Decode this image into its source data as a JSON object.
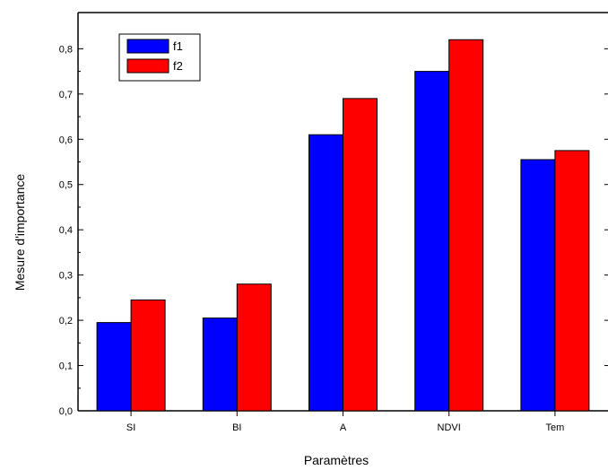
{
  "chart_data": {
    "type": "bar",
    "title": "",
    "xlabel": "Paramètres",
    "ylabel": "Mesure d'importance",
    "categories": [
      "SI",
      "BI",
      "A",
      "NDVI",
      "Tem"
    ],
    "series": [
      {
        "name": "f1",
        "color": "#0000ff",
        "values": [
          0.195,
          0.205,
          0.61,
          0.75,
          0.555
        ]
      },
      {
        "name": "f2",
        "color": "#ff0000",
        "values": [
          0.245,
          0.28,
          0.69,
          0.82,
          0.575
        ]
      }
    ],
    "ylim": [
      0,
      0.88
    ],
    "yticks": [
      0.0,
      0.1,
      0.2,
      0.3,
      0.4,
      0.5,
      0.6,
      0.7,
      0.8
    ],
    "ytick_labels": [
      "0,0",
      "0,1",
      "0,2",
      "0,3",
      "0,4",
      "0,5",
      "0,6",
      "0,7",
      "0,8"
    ],
    "grid": false,
    "legend_position": "top-left"
  }
}
